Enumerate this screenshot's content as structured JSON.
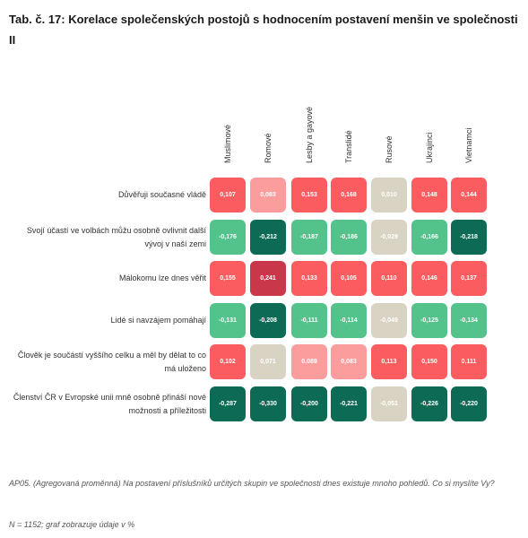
{
  "title": "Tab. č. 17: Korelace společenských postojů s hodnocením postavení menšin ve společnosti II",
  "footnote": "AP05. (Agregovaná proměnná) Na postavení příslušníků určitých skupin ve společnosti dnes existuje mnoho pohledů. Co si myslíte Vy?",
  "sample_note": "N = 1152; graf zobrazuje údaje v %",
  "colors": {
    "dark_green": "#0d6b55",
    "light_green": "#53c38b",
    "beige": "#d8d3c2",
    "light_red": "#fb9d9d",
    "red": "#fb5c5f",
    "dark_red": "#c8384a"
  },
  "chart_data": {
    "type": "heatmap",
    "title": "Tab. č. 17: Korelace společenských postojů s hodnocením postavení menšin ve společnosti II",
    "columns": [
      "Muslimové",
      "Romové",
      "Lesby a gayové",
      "Translidé",
      "Rusové",
      "Ukrajinci",
      "Vietnamci"
    ],
    "rows": [
      "Důvěřuji současné vládě",
      "Svojí účastí ve volbách můžu osobně ovlivnit další vývoj v naší zemi",
      "Málokomu lze dnes věřit",
      "Lidé si navzájem pomáhají",
      "Člověk je součástí vyššího celku a měl by dělat to co má uloženo",
      "Členství ČR v Evropské unii mně osobně přináší nové možnosti a příležitosti"
    ],
    "labels": [
      [
        "0,107",
        "0,083",
        "0,153",
        "0,168",
        "0,010",
        "0,148",
        "0,144"
      ],
      [
        "-0,176",
        "-0,212",
        "-0,187",
        "-0,186",
        "-0,029",
        "-0,166",
        "-0,218"
      ],
      [
        "0,155",
        "0,241",
        "0,133",
        "0,105",
        "0,110",
        "0,146",
        "0,137"
      ],
      [
        "-0,131",
        "-0,208",
        "-0,111",
        "-0,114",
        "-0,049",
        "-0,125",
        "-0,134"
      ],
      [
        "0,102",
        "0,071",
        "0,089",
        "0,083",
        "0,113",
        "0,150",
        "0,111"
      ],
      [
        "-0,287",
        "-0,330",
        "-0,200",
        "-0,221",
        "-0,051",
        "-0,226",
        "-0,220"
      ]
    ],
    "values": [
      [
        0.107,
        0.083,
        0.153,
        0.168,
        0.01,
        0.148,
        0.144
      ],
      [
        -0.176,
        -0.212,
        -0.187,
        -0.186,
        -0.029,
        -0.166,
        -0.218
      ],
      [
        0.155,
        0.241,
        0.133,
        0.105,
        0.11,
        0.146,
        0.137
      ],
      [
        -0.131,
        -0.208,
        -0.111,
        -0.114,
        -0.049,
        -0.125,
        -0.134
      ],
      [
        0.102,
        0.071,
        0.089,
        0.083,
        0.113,
        0.15,
        0.111
      ],
      [
        -0.287,
        -0.33,
        -0.2,
        -0.221,
        -0.051,
        -0.226,
        -0.22
      ]
    ],
    "cell_colors": [
      [
        "red",
        "light_red",
        "red",
        "red",
        "beige",
        "red",
        "red"
      ],
      [
        "light_green",
        "dark_green",
        "light_green",
        "light_green",
        "beige",
        "light_green",
        "dark_green"
      ],
      [
        "red",
        "dark_red",
        "red",
        "red",
        "red",
        "red",
        "red"
      ],
      [
        "light_green",
        "dark_green",
        "light_green",
        "light_green",
        "beige",
        "light_green",
        "light_green"
      ],
      [
        "red",
        "beige",
        "light_red",
        "light_red",
        "red",
        "red",
        "red"
      ],
      [
        "dark_green",
        "dark_green",
        "dark_green",
        "dark_green",
        "beige",
        "dark_green",
        "dark_green"
      ]
    ]
  }
}
